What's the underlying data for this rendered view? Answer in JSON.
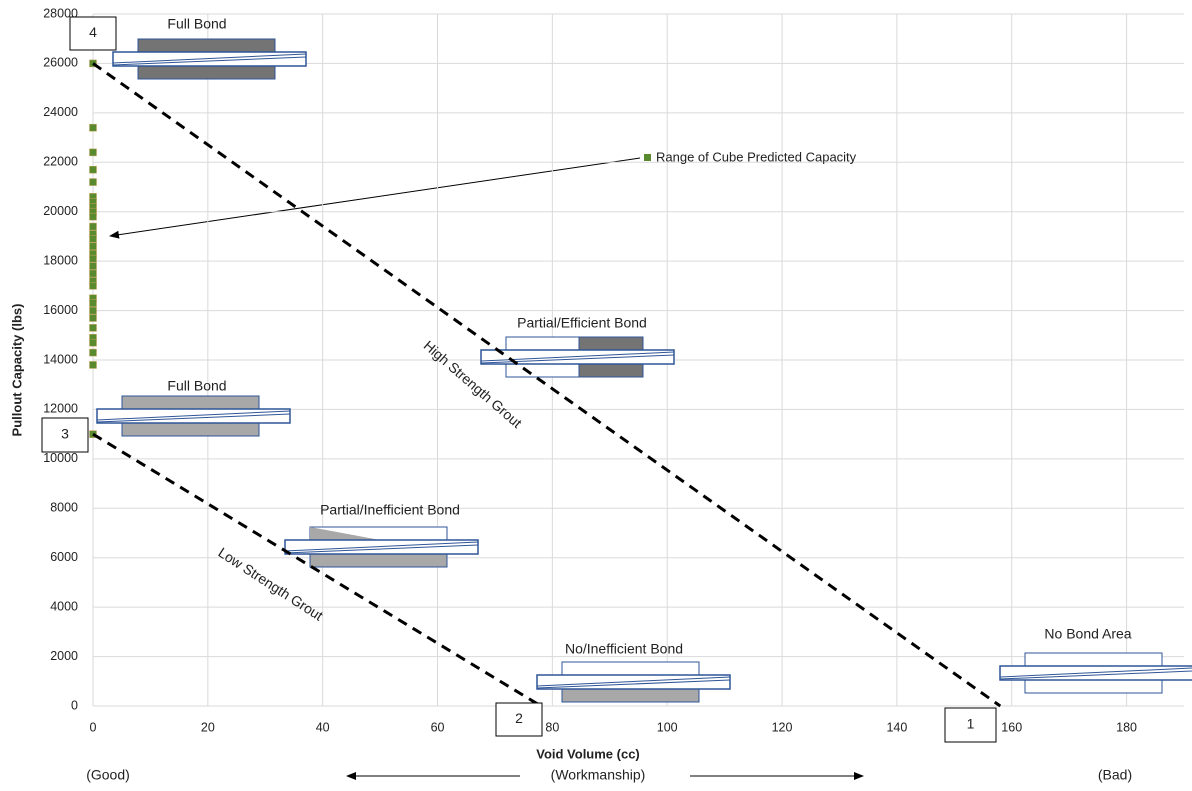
{
  "chart_data": {
    "type": "scatter",
    "xlabel": "Void Volume (cc)",
    "ylabel": "Pullout Capacity (lbs)",
    "xlim": [
      0,
      190
    ],
    "xticks": [
      0,
      20,
      40,
      60,
      80,
      100,
      120,
      140,
      160,
      180
    ],
    "ylim": [
      0,
      28000
    ],
    "yticks": [
      0,
      2000,
      4000,
      6000,
      8000,
      10000,
      12000,
      14000,
      16000,
      18000,
      20000,
      22000,
      24000,
      26000,
      28000
    ],
    "grid": true,
    "series": [
      {
        "color": "#5a8a2e",
        "marker": "square",
        "x": [
          0,
          0,
          0,
          0,
          0,
          0,
          0,
          0,
          0,
          0,
          0,
          0,
          0,
          0,
          0,
          0,
          0,
          0,
          0,
          0,
          0,
          0,
          0,
          0,
          0,
          0,
          0,
          0,
          0,
          0
        ],
        "values": [
          26000,
          23400,
          22400,
          21700,
          21200,
          20600,
          20400,
          20200,
          20000,
          19800,
          19400,
          19100,
          18900,
          18600,
          18300,
          18100,
          17800,
          17500,
          17200,
          17000,
          16500,
          16300,
          16000,
          15700,
          15300,
          14900,
          14700,
          14300,
          13800,
          11000
        ]
      },
      {
        "color": "#000000",
        "dashed": true,
        "x": [
          0,
          158
        ],
        "values": [
          26000,
          0
        ]
      },
      {
        "color": "#000000",
        "dashed": true,
        "x": [
          0,
          78
        ],
        "values": [
          11000,
          0
        ]
      }
    ],
    "annotations": [
      "Full Bond",
      "Full Bond",
      "Partial/Efficient Bond",
      "Partial/Inefficient Bond",
      "No/Inefficient Bond",
      "No Bond Area",
      "High Strength Grout",
      "Low Strength Grout",
      "Range of Cube Predicted Capacity",
      "(Good)",
      "(Workmanship)",
      "(Bad)"
    ],
    "point_labels": [
      "4",
      "3",
      "2",
      "1"
    ]
  }
}
